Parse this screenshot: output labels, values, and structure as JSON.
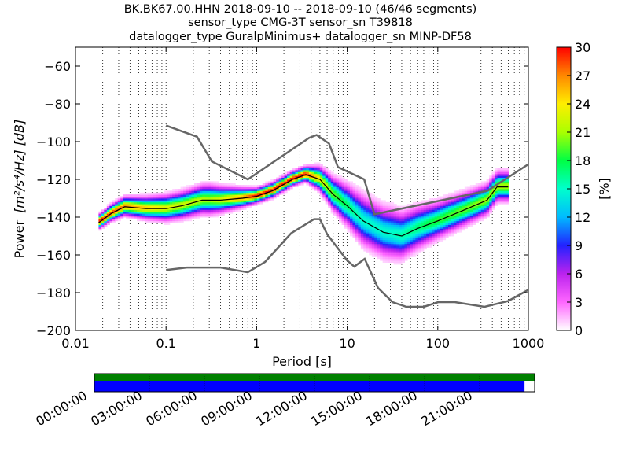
{
  "title_lines": [
    "BK.BK67.00.HHN   2018-09-10 -- 2018-09-10  (46/46 segments)",
    "sensor_type CMG-3T sensor_sn T39818",
    "datalogger_type GuralpMinimus+ datalogger_sn MINP-DF58"
  ],
  "chart_data": {
    "type": "heatmap",
    "xlabel": "Period [s]",
    "ylabel_prefix": "Power",
    "ylabel_units": "[m²/s⁴/Hz] [dB]",
    "x_scale": "log",
    "xlim": [
      0.01,
      1000
    ],
    "ylim": [
      -200,
      -50
    ],
    "x_ticks": [
      0.01,
      0.1,
      1,
      10,
      100,
      1000
    ],
    "x_tick_labels": [
      "0.01",
      "0.1",
      "1",
      "10",
      "100",
      "1000"
    ],
    "y_ticks": [
      -200,
      -180,
      -160,
      -140,
      -120,
      -100,
      -80,
      -60
    ],
    "y_tick_labels": [
      "−200",
      "−180",
      "−160",
      "−140",
      "−120",
      "−100",
      "−80",
      "−60"
    ],
    "grid": "dotted vertical at log minor ticks",
    "colorbar": {
      "label": "[%]",
      "range": [
        0,
        30
      ],
      "ticks": [
        0,
        3,
        6,
        9,
        12,
        15,
        18,
        21,
        24,
        27,
        30
      ]
    },
    "noise_model_high": [
      {
        "period": 0.1,
        "db": -91.5
      },
      {
        "period": 0.22,
        "db": -97.4
      },
      {
        "period": 0.32,
        "db": -110.5
      },
      {
        "period": 0.8,
        "db": -120.0
      },
      {
        "period": 3.8,
        "db": -98.0
      },
      {
        "period": 4.6,
        "db": -96.5
      },
      {
        "period": 6.3,
        "db": -101.0
      },
      {
        "period": 7.9,
        "db": -113.5
      },
      {
        "period": 15.4,
        "db": -120.0
      },
      {
        "period": 20.0,
        "db": -138.5
      },
      {
        "period": 354.8,
        "db": -126.0
      },
      {
        "period": 1000,
        "db": -112.0
      }
    ],
    "noise_model_low": [
      {
        "period": 0.1,
        "db": -168.0
      },
      {
        "period": 0.17,
        "db": -166.7
      },
      {
        "period": 0.4,
        "db": -166.7
      },
      {
        "period": 0.8,
        "db": -169.2
      },
      {
        "period": 1.24,
        "db": -163.7
      },
      {
        "period": 2.4,
        "db": -148.6
      },
      {
        "period": 4.3,
        "db": -141.1
      },
      {
        "period": 5.0,
        "db": -141.1
      },
      {
        "period": 6.0,
        "db": -149.0
      },
      {
        "period": 10.0,
        "db": -163.0
      },
      {
        "period": 12.0,
        "db": -166.2
      },
      {
        "period": 15.6,
        "db": -162.1
      },
      {
        "period": 21.9,
        "db": -177.5
      },
      {
        "period": 31.6,
        "db": -185.0
      },
      {
        "period": 45.0,
        "db": -187.5
      },
      {
        "period": 70.0,
        "db": -187.5
      },
      {
        "period": 101.0,
        "db": -185.0
      },
      {
        "period": 154.0,
        "db": -185.0
      },
      {
        "period": 328.0,
        "db": -187.5
      },
      {
        "period": 600.0,
        "db": -184.4
      },
      {
        "period": 1000,
        "db": -178.5
      }
    ],
    "mean_curve": [
      {
        "period": 0.018,
        "db": -143.0
      },
      {
        "period": 0.025,
        "db": -138.0
      },
      {
        "period": 0.035,
        "db": -134.5
      },
      {
        "period": 0.06,
        "db": -135.5
      },
      {
        "period": 0.1,
        "db": -135.5
      },
      {
        "period": 0.15,
        "db": -134.0
      },
      {
        "period": 0.25,
        "db": -131.0
      },
      {
        "period": 0.4,
        "db": -131.0
      },
      {
        "period": 0.7,
        "db": -130.0
      },
      {
        "period": 1.0,
        "db": -129.0
      },
      {
        "period": 1.5,
        "db": -126.0
      },
      {
        "period": 2.5,
        "db": -120.0
      },
      {
        "period": 3.5,
        "db": -117.5
      },
      {
        "period": 5.0,
        "db": -120.0
      },
      {
        "period": 7.0,
        "db": -128.0
      },
      {
        "period": 10.0,
        "db": -134.0
      },
      {
        "period": 15.0,
        "db": -142.0
      },
      {
        "period": 25.0,
        "db": -148.0
      },
      {
        "period": 40.0,
        "db": -150.0
      },
      {
        "period": 60.0,
        "db": -146.0
      },
      {
        "period": 100.0,
        "db": -142.0
      },
      {
        "period": 200.0,
        "db": -136.0
      },
      {
        "period": 350.0,
        "db": -131.0
      },
      {
        "period": 450.0,
        "db": -124.0
      },
      {
        "period": 600.0,
        "db": -124.0
      }
    ],
    "spread_curve": [
      {
        "period": 0.02,
        "db": 4.0
      },
      {
        "period": 0.1,
        "db": 7.0
      },
      {
        "period": 0.3,
        "db": 8.0
      },
      {
        "period": 1.0,
        "db": 4.0
      },
      {
        "period": 3.5,
        "db": 4.0
      },
      {
        "period": 7.0,
        "db": 9.0
      },
      {
        "period": 15.0,
        "db": 14.0
      },
      {
        "period": 30.0,
        "db": 14.0
      },
      {
        "period": 100.0,
        "db": 10.0
      },
      {
        "period": 400.0,
        "db": 8.0
      },
      {
        "period": 600.0,
        "db": 8.0
      }
    ]
  },
  "timeline": {
    "tick_labels": [
      "00:00:00",
      "03:00:00",
      "06:00:00",
      "09:00:00",
      "12:00:00",
      "15:00:00",
      "18:00:00",
      "21:00:00"
    ],
    "coverage_top_fraction": 1.0,
    "coverage_bottom_fraction": 0.977,
    "top_color": "#008000",
    "bottom_color": "#0000ff"
  }
}
